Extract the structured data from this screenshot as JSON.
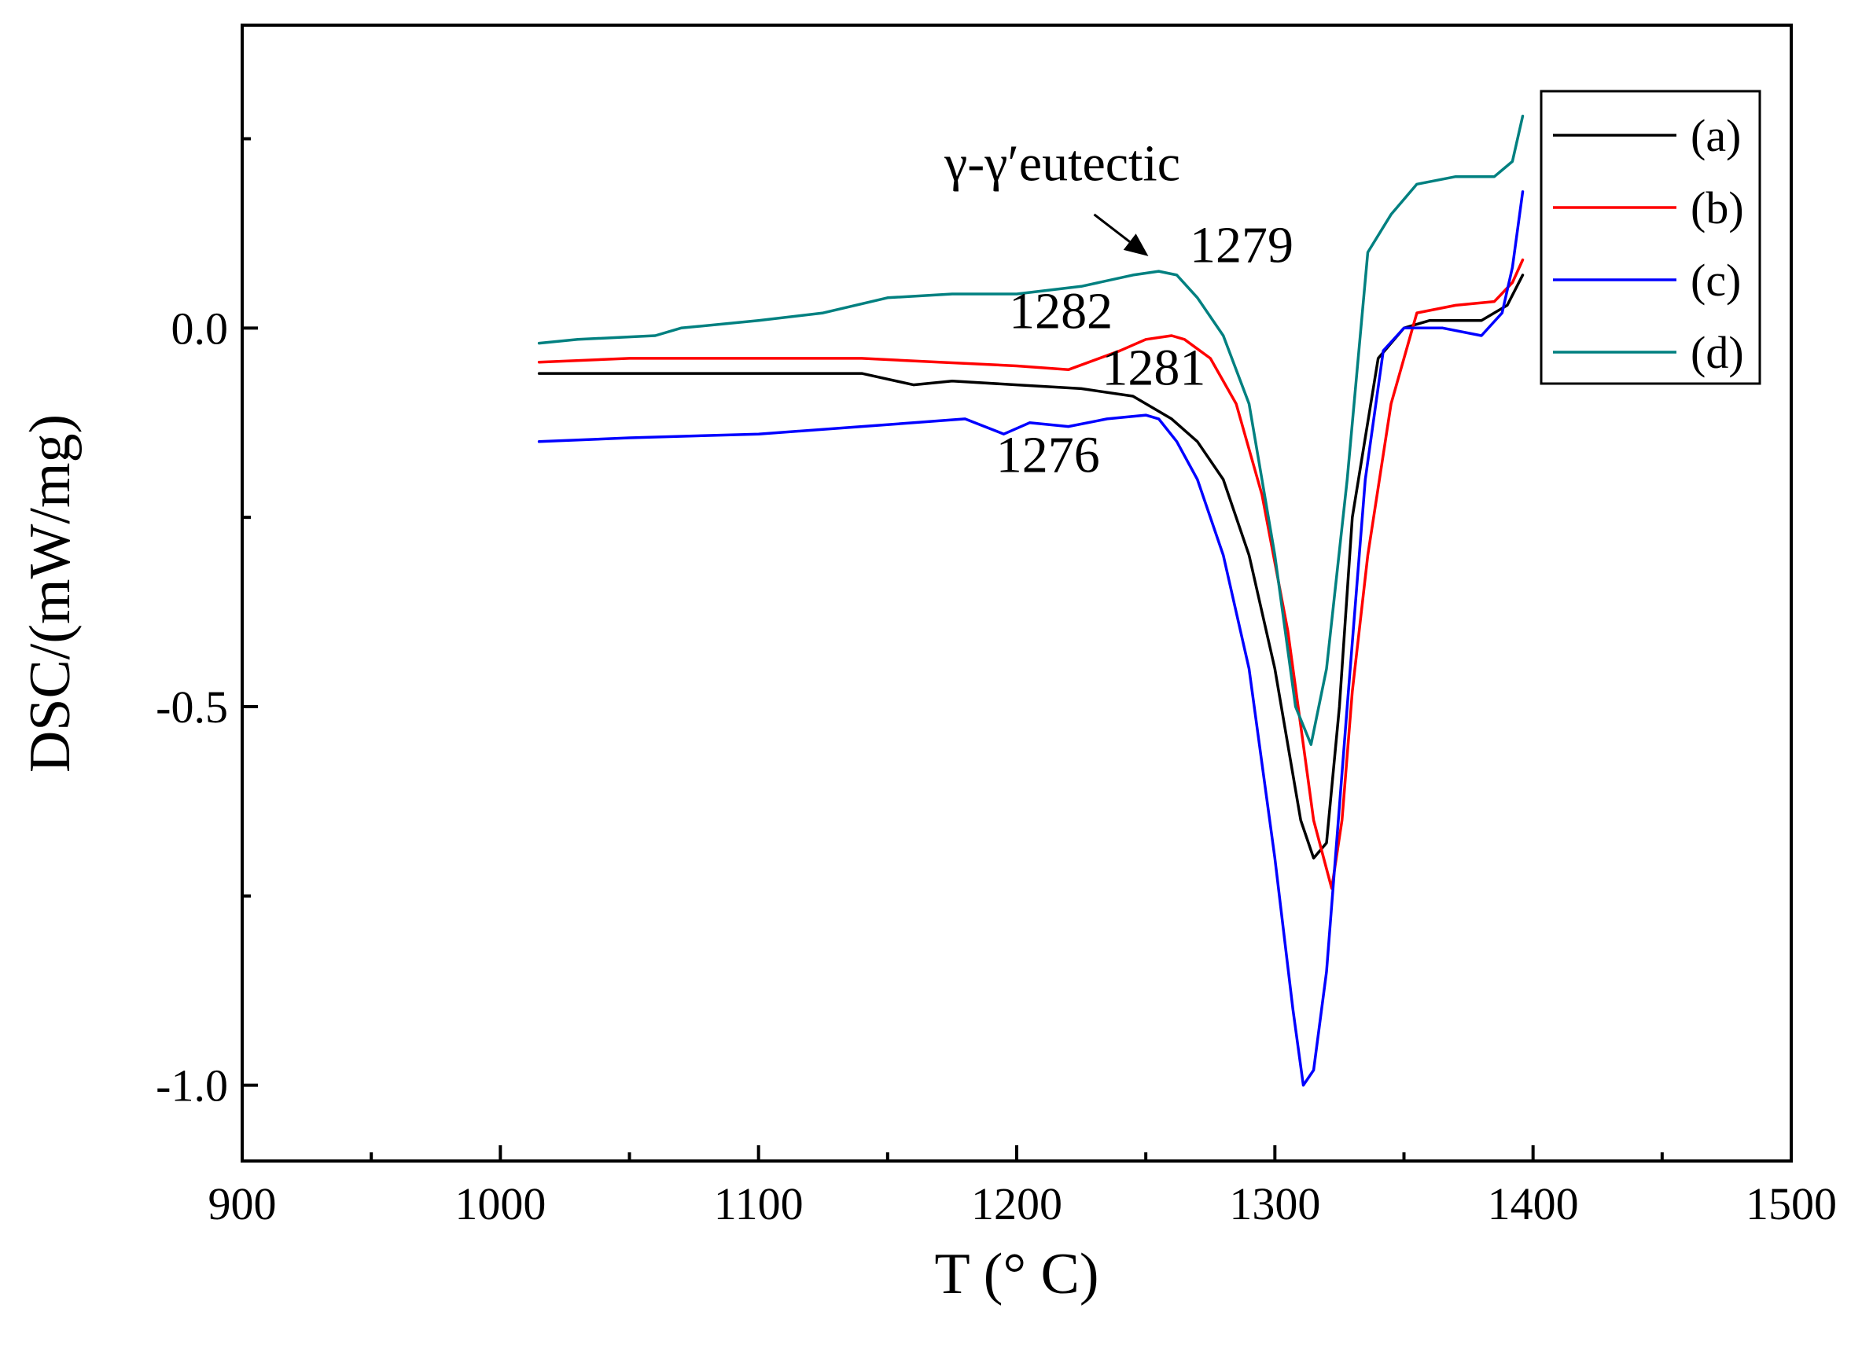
{
  "chart_data": {
    "type": "line",
    "xlabel": "T (° C)",
    "ylabel": "DSC/(mW/mg)",
    "xlim": [
      900,
      1500
    ],
    "ylim": [
      -1.1,
      0.4
    ],
    "xticks": [
      900,
      1000,
      1100,
      1200,
      1300,
      1400,
      1500
    ],
    "xtick_labels": [
      "900",
      "1000",
      "1100",
      "1200",
      "1300",
      "1400",
      "1500"
    ],
    "yticks": [
      0.0,
      -0.5,
      -1.0
    ],
    "ytick_labels": [
      "0.0",
      "-0.5",
      "-1.0"
    ],
    "legend_position": "top-right",
    "series": [
      {
        "name": "(a)",
        "color": "#000000",
        "points": [
          [
            1015,
            -0.06
          ],
          [
            1050,
            -0.06
          ],
          [
            1100,
            -0.06
          ],
          [
            1140,
            -0.06
          ],
          [
            1160,
            -0.075
          ],
          [
            1175,
            -0.07
          ],
          [
            1200,
            -0.075
          ],
          [
            1225,
            -0.08
          ],
          [
            1245,
            -0.09
          ],
          [
            1260,
            -0.12
          ],
          [
            1270,
            -0.15
          ],
          [
            1280,
            -0.2
          ],
          [
            1290,
            -0.3
          ],
          [
            1300,
            -0.45
          ],
          [
            1310,
            -0.65
          ],
          [
            1315,
            -0.7
          ],
          [
            1320,
            -0.68
          ],
          [
            1325,
            -0.5
          ],
          [
            1330,
            -0.25
          ],
          [
            1340,
            -0.04
          ],
          [
            1350,
            0.0
          ],
          [
            1360,
            0.01
          ],
          [
            1380,
            0.01
          ],
          [
            1390,
            0.03
          ],
          [
            1396,
            0.07
          ]
        ]
      },
      {
        "name": "(b)",
        "color": "#ff0000",
        "points": [
          [
            1015,
            -0.045
          ],
          [
            1050,
            -0.04
          ],
          [
            1100,
            -0.04
          ],
          [
            1140,
            -0.04
          ],
          [
            1170,
            -0.045
          ],
          [
            1200,
            -0.05
          ],
          [
            1220,
            -0.055
          ],
          [
            1240,
            -0.03
          ],
          [
            1250,
            -0.015
          ],
          [
            1260,
            -0.01
          ],
          [
            1265,
            -0.015
          ],
          [
            1275,
            -0.04
          ],
          [
            1285,
            -0.1
          ],
          [
            1295,
            -0.22
          ],
          [
            1305,
            -0.4
          ],
          [
            1315,
            -0.65
          ],
          [
            1322,
            -0.74
          ],
          [
            1326,
            -0.65
          ],
          [
            1330,
            -0.48
          ],
          [
            1336,
            -0.3
          ],
          [
            1345,
            -0.1
          ],
          [
            1355,
            0.02
          ],
          [
            1370,
            0.03
          ],
          [
            1385,
            0.035
          ],
          [
            1392,
            0.06
          ],
          [
            1396,
            0.09
          ]
        ]
      },
      {
        "name": "(c)",
        "color": "#0000ff",
        "points": [
          [
            1015,
            -0.15
          ],
          [
            1050,
            -0.145
          ],
          [
            1100,
            -0.14
          ],
          [
            1140,
            -0.13
          ],
          [
            1160,
            -0.125
          ],
          [
            1180,
            -0.12
          ],
          [
            1195,
            -0.14
          ],
          [
            1205,
            -0.125
          ],
          [
            1220,
            -0.13
          ],
          [
            1235,
            -0.12
          ],
          [
            1250,
            -0.115
          ],
          [
            1255,
            -0.12
          ],
          [
            1262,
            -0.15
          ],
          [
            1270,
            -0.2
          ],
          [
            1280,
            -0.3
          ],
          [
            1290,
            -0.45
          ],
          [
            1300,
            -0.7
          ],
          [
            1307,
            -0.9
          ],
          [
            1311,
            -1.0
          ],
          [
            1315,
            -0.98
          ],
          [
            1320,
            -0.85
          ],
          [
            1328,
            -0.5
          ],
          [
            1335,
            -0.2
          ],
          [
            1342,
            -0.03
          ],
          [
            1350,
            0.0
          ],
          [
            1365,
            0.0
          ],
          [
            1380,
            -0.01
          ],
          [
            1388,
            0.02
          ],
          [
            1392,
            0.08
          ],
          [
            1396,
            0.18
          ]
        ]
      },
      {
        "name": "(d)",
        "color": "#008080",
        "points": [
          [
            1015,
            -0.02
          ],
          [
            1030,
            -0.015
          ],
          [
            1060,
            -0.01
          ],
          [
            1070,
            0.0
          ],
          [
            1100,
            0.01
          ],
          [
            1125,
            0.02
          ],
          [
            1150,
            0.04
          ],
          [
            1175,
            0.045
          ],
          [
            1200,
            0.045
          ],
          [
            1225,
            0.055
          ],
          [
            1245,
            0.07
          ],
          [
            1255,
            0.075
          ],
          [
            1262,
            0.07
          ],
          [
            1270,
            0.04
          ],
          [
            1280,
            -0.01
          ],
          [
            1290,
            -0.1
          ],
          [
            1300,
            -0.3
          ],
          [
            1308,
            -0.5
          ],
          [
            1314,
            -0.55
          ],
          [
            1320,
            -0.45
          ],
          [
            1328,
            -0.2
          ],
          [
            1336,
            0.1
          ],
          [
            1345,
            0.15
          ],
          [
            1355,
            0.19
          ],
          [
            1370,
            0.2
          ],
          [
            1385,
            0.2
          ],
          [
            1392,
            0.22
          ],
          [
            1396,
            0.28
          ]
        ]
      }
    ],
    "annotations": [
      {
        "text": "γ-γ′eutectic",
        "x": 1172,
        "y": 0.195
      },
      {
        "text": "1279",
        "x": 1267,
        "y": 0.087
      },
      {
        "text": "1282",
        "x": 1197,
        "y": 0.0
      },
      {
        "text": "1281",
        "x": 1233,
        "y": -0.075
      },
      {
        "text": "1276",
        "x": 1192,
        "y": -0.19
      }
    ],
    "arrow": {
      "from": [
        1230,
        0.15
      ],
      "to": [
        1251,
        0.095
      ]
    }
  }
}
